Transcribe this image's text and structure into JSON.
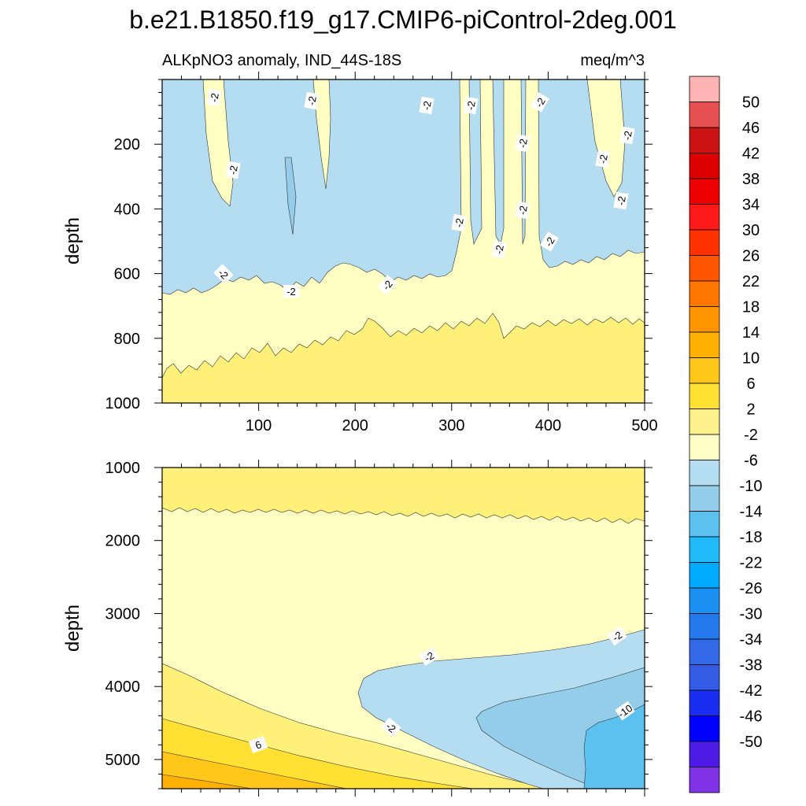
{
  "chart_data": {
    "type": "contour",
    "title": "b.e21.B1850.f19_g17.CMIP6-piControl-2deg.001",
    "subtitle_left": "ALKpNO3 anomaly, IND_44S-18S",
    "subtitle_right": "meq/m^3",
    "units": "meq/m^3",
    "xlabel": "",
    "xlim": [
      0,
      500
    ],
    "x_ticks": [
      100,
      200,
      300,
      400,
      500
    ],
    "panels": [
      {
        "name": "upper",
        "ylabel": "depth",
        "ylim": [
          0,
          1000
        ],
        "y_reversed": true,
        "y_ticks": [
          200,
          400,
          600,
          800,
          1000
        ],
        "x_ticks_labeled": true,
        "contour_labels": [
          "-2",
          "-2",
          "-2",
          "-2",
          "-2",
          "-2",
          "-2",
          "-2",
          "-2",
          "-2",
          "-2",
          "-2",
          "-2",
          "-2",
          "-2",
          "-2",
          "-2"
        ]
      },
      {
        "name": "lower",
        "ylabel": "depth",
        "ylim": [
          1000,
          5400
        ],
        "y_reversed": true,
        "y_ticks": [
          1000,
          2000,
          3000,
          4000,
          5000
        ],
        "x_ticks_labeled": false,
        "contour_labels": [
          "-2",
          "-2",
          "-2",
          "6",
          "-10"
        ]
      }
    ],
    "colorbar": {
      "labels": [
        "50",
        "46",
        "42",
        "38",
        "34",
        "30",
        "26",
        "22",
        "18",
        "14",
        "10",
        "6",
        "2",
        "-2",
        "-6",
        "-10",
        "-14",
        "-18",
        "-22",
        "-26",
        "-30",
        "-34",
        "-38",
        "-42",
        "-46",
        "-50"
      ],
      "colors": [
        "#ffb3b3",
        "#e65050",
        "#cc1414",
        "#dd0000",
        "#ee0000",
        "#ff1a1a",
        "#ff3300",
        "#ff5500",
        "#ff7700",
        "#ff9500",
        "#ffb000",
        "#ffc71a",
        "#ffe033",
        "#fff28c",
        "#ffffc8",
        "#b4ddf2",
        "#94cdea",
        "#5cc1ef",
        "#1fbaf7",
        "#00aaff",
        "#1a91f2",
        "#2479ec",
        "#3369e6",
        "#335be6",
        "#1a2ef2",
        "#0000ff",
        "#4d1ae6",
        "#8033e6"
      ]
    }
  }
}
